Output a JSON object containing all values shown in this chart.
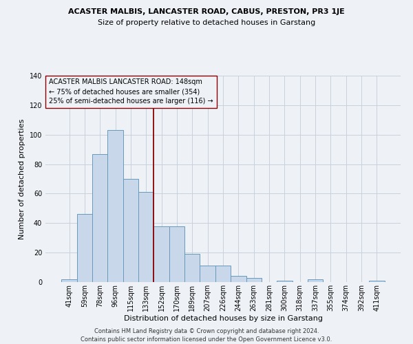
{
  "title1": "ACASTER MALBIS, LANCASTER ROAD, CABUS, PRESTON, PR3 1JE",
  "title2": "Size of property relative to detached houses in Garstang",
  "xlabel": "Distribution of detached houses by size in Garstang",
  "ylabel": "Number of detached properties",
  "categories": [
    "41sqm",
    "59sqm",
    "78sqm",
    "96sqm",
    "115sqm",
    "133sqm",
    "152sqm",
    "170sqm",
    "189sqm",
    "207sqm",
    "226sqm",
    "244sqm",
    "263sqm",
    "281sqm",
    "300sqm",
    "318sqm",
    "337sqm",
    "355sqm",
    "374sqm",
    "392sqm",
    "411sqm"
  ],
  "values": [
    2,
    46,
    87,
    103,
    70,
    61,
    38,
    38,
    19,
    11,
    11,
    4,
    3,
    0,
    1,
    0,
    2,
    0,
    0,
    0,
    1
  ],
  "bar_color": "#c8d8ea",
  "bar_edge_color": "#6699bb",
  "vline_color": "#8b0000",
  "ylim": [
    0,
    140
  ],
  "yticks": [
    0,
    20,
    40,
    60,
    80,
    100,
    120,
    140
  ],
  "annotation_lines": [
    "ACASTER MALBIS LANCASTER ROAD: 148sqm",
    "← 75% of detached houses are smaller (354)",
    "25% of semi-detached houses are larger (116) →"
  ],
  "footer1": "Contains HM Land Registry data © Crown copyright and database right 2024.",
  "footer2": "Contains public sector information licensed under the Open Government Licence v3.0.",
  "background_color": "#eef2f7",
  "grid_color": "#c8d0dc",
  "title1_fontsize": 8.0,
  "title2_fontsize": 8.0,
  "ylabel_fontsize": 8.0,
  "xlabel_fontsize": 8.0,
  "tick_fontsize": 7.0,
  "annotation_fontsize": 7.0,
  "footer_fontsize": 6.0
}
